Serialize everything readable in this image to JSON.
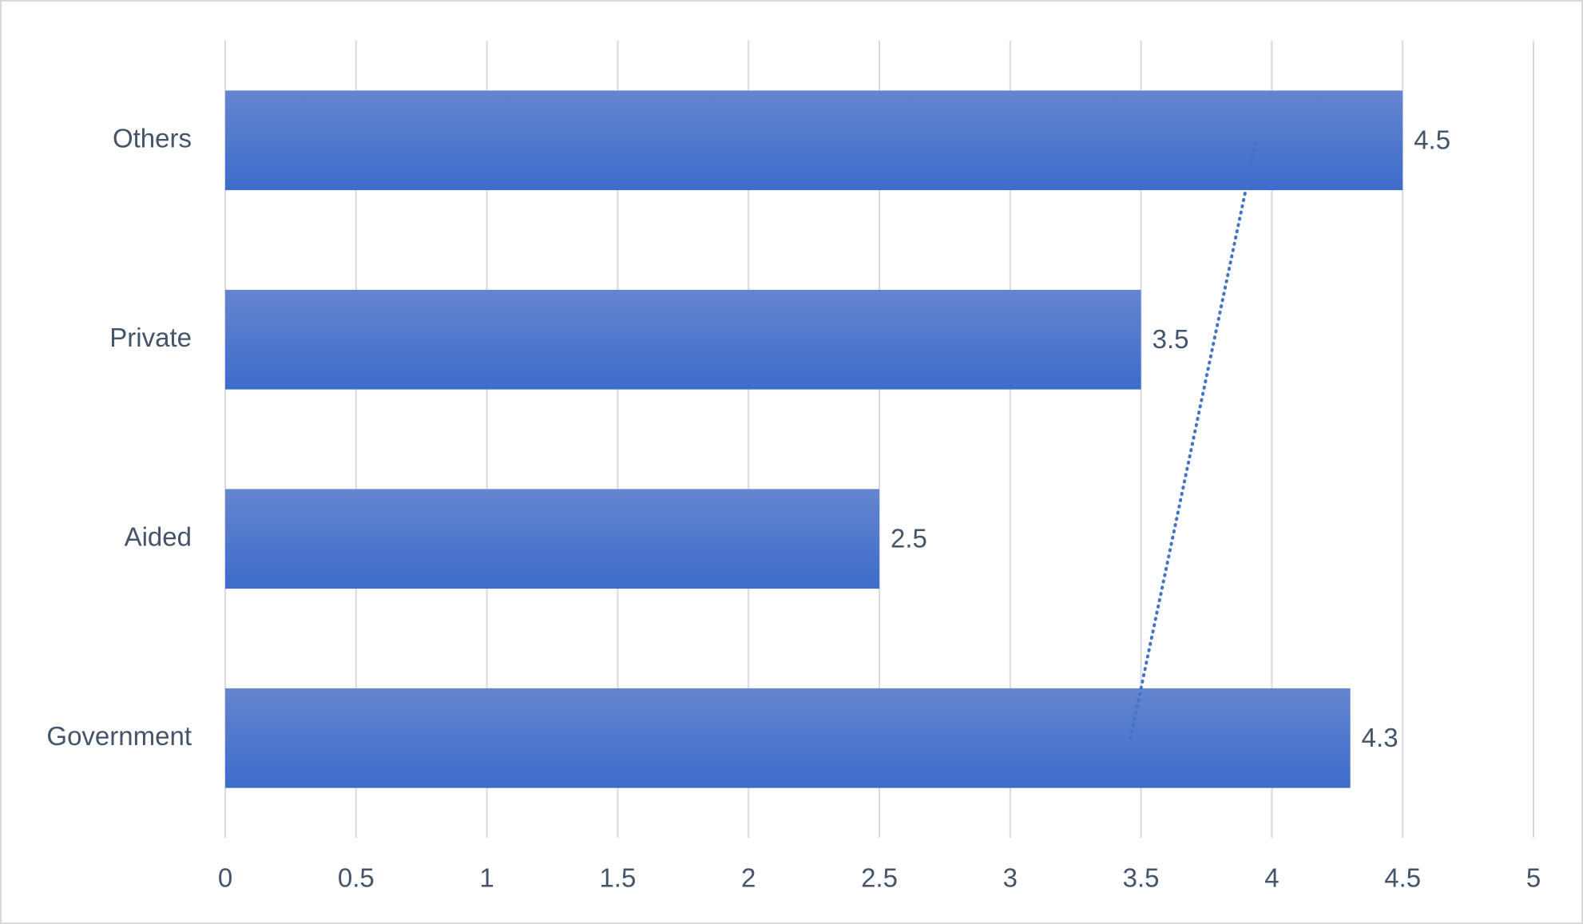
{
  "chart_data": {
    "type": "bar",
    "orientation": "horizontal",
    "categories": [
      "Government",
      "Aided",
      "Private",
      "Others"
    ],
    "values": [
      4.3,
      2.5,
      3.5,
      4.5
    ],
    "color": "#4472c4",
    "xlim": [
      0,
      5
    ],
    "xticks": [
      0,
      0.5,
      1,
      1.5,
      2,
      2.5,
      3,
      3.5,
      4,
      4.5,
      5
    ],
    "grid": true,
    "data_labels": true,
    "trendline": "linear"
  }
}
